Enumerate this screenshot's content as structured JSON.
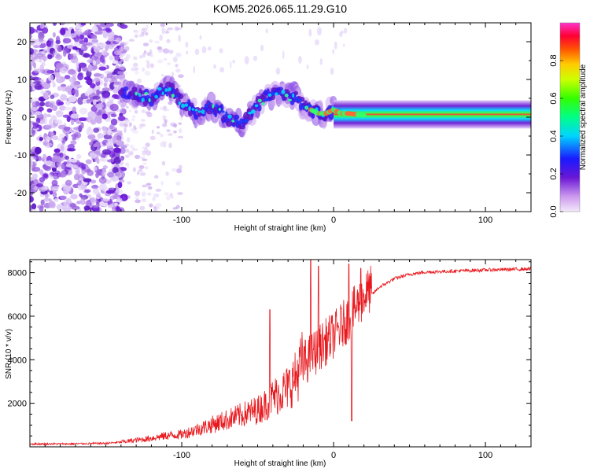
{
  "title": "KOM5.2026.065.11.29.G10",
  "colors": {
    "snr_line": "#e8191e",
    "ridge_purple": "#6a17d6",
    "scatter_light": "#c9a6ee",
    "axis": "#000000"
  },
  "chart_data": [
    {
      "type": "heatmap",
      "title": "KOM5.2026.065.11.29.G10",
      "xlabel": "Height of straight line (km)",
      "ylabel": "Frequency (Hz)",
      "xlim": [
        -200,
        130
      ],
      "ylim": [
        -25,
        25
      ],
      "xticks": [
        -100,
        0,
        100
      ],
      "yticks": [
        20,
        10,
        0,
        -10,
        -20
      ],
      "colorbar": {
        "label": "Normalized spectral amplitude",
        "range": [
          0.0,
          1.0
        ],
        "ticks": [
          "0.0",
          "0.2",
          "0.4",
          "0.6",
          "0.8"
        ]
      },
      "ridge": {
        "x": [
          -140,
          -130,
          -120,
          -110,
          -100,
          -90,
          -80,
          -70,
          -60,
          -55,
          -50,
          -45,
          -40,
          -35,
          -30,
          -25,
          -20,
          -15,
          -10,
          -5,
          0,
          5,
          10,
          20,
          40,
          60,
          80,
          100,
          130
        ],
        "y": [
          7,
          6,
          5,
          8,
          4,
          1,
          3,
          0,
          -2,
          1,
          3,
          5,
          6,
          7,
          5,
          6,
          3,
          2,
          1,
          1,
          2,
          1,
          1,
          0.5,
          1,
          1,
          1,
          1,
          1
        ],
        "note": "dense noisy cluster x<-140; ridge stabilizes near 0.5-1 Hz for x>0"
      }
    },
    {
      "type": "line",
      "xlabel": "Height of straight line (km)",
      "ylabel": "SNR (10 * v/v)",
      "xlim": [
        -200,
        130
      ],
      "ylim": [
        0,
        8600
      ],
      "xticks": [
        -100,
        0,
        100
      ],
      "yticks": [
        2000,
        4000,
        6000,
        8000
      ],
      "series": [
        {
          "name": "SNR",
          "x": [
            -200,
            -175,
            -150,
            -140,
            -125,
            -110,
            -100,
            -90,
            -80,
            -70,
            -60,
            -50,
            -45,
            -40,
            -35,
            -30,
            -25,
            -20,
            -15,
            -10,
            -5,
            0,
            10,
            20,
            30,
            40,
            50,
            60,
            80,
            100,
            130
          ],
          "base": [
            120,
            120,
            150,
            200,
            300,
            450,
            500,
            700,
            900,
            1100,
            1300,
            1500,
            1700,
            2000,
            2200,
            2400,
            2800,
            3500,
            3800,
            4200,
            4500,
            4800,
            5600,
            6600,
            7300,
            7700,
            7900,
            8000,
            8050,
            8100,
            8150
          ],
          "spikes": [
            {
              "x": -42,
              "y": 6300
            },
            {
              "x": -15,
              "y": 8600
            },
            {
              "x": -10,
              "y": 8300
            },
            {
              "x": 10,
              "y": 8400
            },
            {
              "x": 12,
              "y": 1200
            },
            {
              "x": 18,
              "y": 8200
            }
          ]
        }
      ]
    }
  ]
}
